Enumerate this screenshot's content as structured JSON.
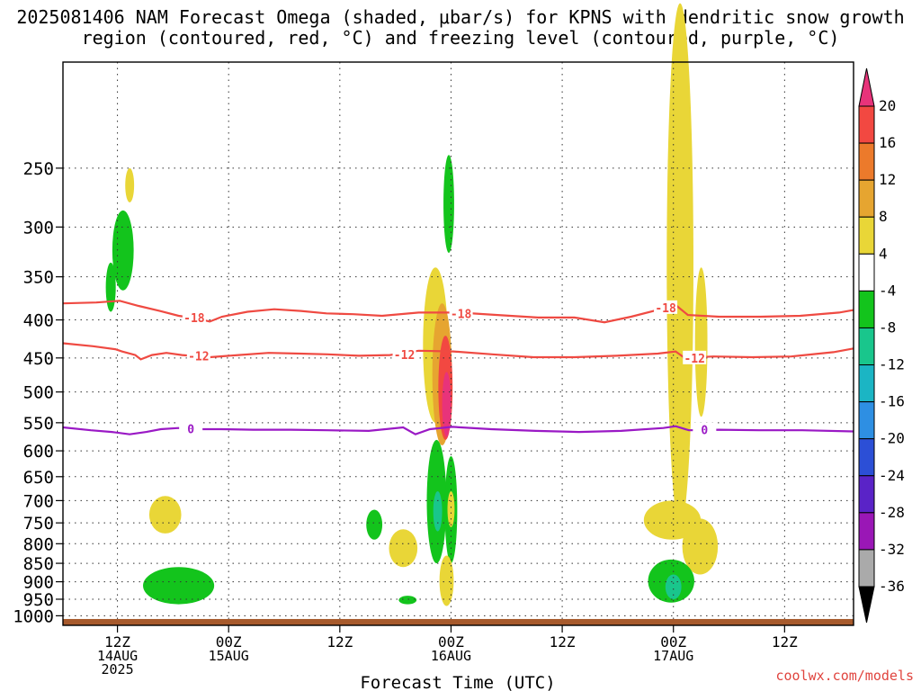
{
  "title": "2025081406 NAM Forecast Omega (shaded, μbar/s) for KPNS with dendritic snow growth region (contoured, red, °C) and freezing level (contoured, purple, °C)",
  "footer": "coolwx.com/models",
  "chart_data": {
    "type": "heatmap",
    "title": "2025081406 NAM Forecast Omega (shaded, μbar/s) for KPNS with dendritic snow growth region (contoured, red, °C) and freezing level (contoured, purple, °C)",
    "xlabel": "Forecast Time (UTC)",
    "ylabel": "",
    "x_range_hours": [
      -4,
      66
    ],
    "y_range_hPa": [
      1030,
      180
    ],
    "y_ticks": [
      250,
      300,
      350,
      400,
      450,
      500,
      550,
      600,
      650,
      700,
      750,
      800,
      850,
      900,
      950,
      1000
    ],
    "x_ticks": [
      {
        "hour": 0,
        "lines": [
          "12Z",
          "14AUG",
          "2025"
        ]
      },
      {
        "hour": 10,
        "lines": [
          "00Z",
          "15AUG"
        ]
      },
      {
        "hour": 20,
        "lines": [
          "12Z"
        ]
      },
      {
        "hour": 30,
        "lines": [
          "00Z",
          "16AUG"
        ]
      },
      {
        "hour": 40,
        "lines": [
          "12Z"
        ]
      },
      {
        "hour": 50,
        "lines": [
          "00Z",
          "17AUG"
        ]
      },
      {
        "hour": 60,
        "lines": [
          "12Z"
        ]
      }
    ],
    "grid": true,
    "colorbar": {
      "labels": [
        "20",
        "16",
        "12",
        "8",
        "4",
        "-4",
        "-8",
        "-12",
        "-16",
        "-20",
        "-24",
        "-28",
        "-32",
        "-36"
      ],
      "colors": [
        "#e8337a",
        "#f24841",
        "#ec7a2b",
        "#e6a530",
        "#e9d637",
        "#ffffff",
        "#13c41c",
        "#19c68c",
        "#1bb5c4",
        "#2e8fe3",
        "#2c4fd6",
        "#5a23c7",
        "#9a17b6",
        "#aaaaaa",
        "#000000"
      ],
      "min_arrow": "black",
      "max_arrow": "magenta"
    },
    "contours": [
      {
        "label": "-18",
        "color": "#ef4a42",
        "points": [
          [
            -4.9,
            380
          ],
          [
            -1.9,
            379
          ],
          [
            0.2,
            377
          ],
          [
            1.9,
            383
          ],
          [
            3.8,
            389
          ],
          [
            5.5,
            395
          ],
          [
            7.1,
            398
          ],
          [
            8.3,
            402
          ],
          [
            9.4,
            396
          ],
          [
            11.7,
            390
          ],
          [
            14.1,
            387
          ],
          [
            16.5,
            389
          ],
          [
            18.8,
            392
          ],
          [
            21.2,
            393
          ],
          [
            23.8,
            395
          ],
          [
            27.1,
            391
          ],
          [
            30.7,
            391
          ],
          [
            34.2,
            394
          ],
          [
            37.8,
            397
          ],
          [
            41.1,
            397
          ],
          [
            43.8,
            403
          ],
          [
            46.2,
            396
          ],
          [
            49.1,
            386
          ],
          [
            50.2,
            382
          ],
          [
            51.3,
            394
          ],
          [
            54.1,
            396
          ],
          [
            57.8,
            396
          ],
          [
            61.4,
            395
          ],
          [
            64.9,
            391
          ],
          [
            66.2,
            388
          ]
        ]
      },
      {
        "label": "-18",
        "color": "#ef4a42",
        "pts_labels": [
          [
            6.9,
            397
          ],
          [
            30.9,
            392
          ],
          [
            49.3,
            385
          ]
        ]
      },
      {
        "label": "-12",
        "color": "#ef4a42",
        "points": [
          [
            -4.9,
            430
          ],
          [
            -2.2,
            434
          ],
          [
            -0.2,
            438
          ],
          [
            0.4,
            441
          ],
          [
            1.6,
            446
          ],
          [
            2.1,
            452
          ],
          [
            3.1,
            446
          ],
          [
            4.4,
            443
          ],
          [
            5.8,
            446
          ],
          [
            8.3,
            449
          ],
          [
            10.9,
            446
          ],
          [
            13.6,
            443
          ],
          [
            16.4,
            444
          ],
          [
            18.9,
            445
          ],
          [
            21.7,
            447
          ],
          [
            24.5,
            446
          ],
          [
            27.1,
            440
          ],
          [
            30.2,
            441
          ],
          [
            33.7,
            445
          ],
          [
            37.4,
            449
          ],
          [
            41.1,
            449
          ],
          [
            44.9,
            447
          ],
          [
            48.6,
            444
          ],
          [
            50.2,
            441
          ],
          [
            51.0,
            450
          ],
          [
            53.6,
            448
          ],
          [
            57.1,
            449
          ],
          [
            60.6,
            448
          ],
          [
            64.4,
            442
          ],
          [
            66.2,
            437
          ]
        ]
      },
      {
        "label": "-12",
        "color": "#ef4a42",
        "pts_labels": [
          [
            7.3,
            447
          ],
          [
            25.8,
            445
          ],
          [
            51.9,
            450
          ]
        ]
      },
      {
        "label": "0",
        "color": "#9a19c5",
        "points": [
          [
            -4.9,
            558
          ],
          [
            -2.4,
            563
          ],
          [
            -0.5,
            566
          ],
          [
            1.1,
            570
          ],
          [
            2.6,
            566
          ],
          [
            3.9,
            561
          ],
          [
            5.5,
            559
          ],
          [
            7.3,
            561
          ],
          [
            9.3,
            561
          ],
          [
            12.2,
            562
          ],
          [
            15.6,
            562
          ],
          [
            18.9,
            563
          ],
          [
            22.6,
            564
          ],
          [
            25.7,
            558
          ],
          [
            26.8,
            570
          ],
          [
            28.1,
            561
          ],
          [
            30.1,
            557
          ],
          [
            33.6,
            561
          ],
          [
            37.6,
            564
          ],
          [
            41.5,
            566
          ],
          [
            45.3,
            564
          ],
          [
            49.1,
            559
          ],
          [
            50.2,
            556
          ],
          [
            51.4,
            563
          ],
          [
            54.1,
            562
          ],
          [
            57.7,
            563
          ],
          [
            61.6,
            563
          ],
          [
            66.2,
            565
          ]
        ]
      },
      {
        "label": "0",
        "color": "#9a19c5",
        "pts_labels": [
          [
            6.6,
            560
          ],
          [
            52.8,
            562
          ]
        ]
      }
    ],
    "omega_regions": [
      {
        "value": "-8",
        "color": "#13c41c",
        "hour": 0.5,
        "p_top": 285,
        "p_bottom": 365,
        "w": 0.6
      },
      {
        "value": "-8",
        "color": "#13c41c",
        "hour": -0.6,
        "p_top": 335,
        "p_bottom": 390,
        "w": 0.28
      },
      {
        "value": "4",
        "color": "#e9d637",
        "hour": 1.1,
        "p_top": 250,
        "p_bottom": 278,
        "w": 0.25
      },
      {
        "value": "4",
        "color": "#e9d637",
        "hour": 4.3,
        "p_top": 690,
        "p_bottom": 775,
        "w": 0.9
      },
      {
        "value": "-8",
        "color": "#13c41c",
        "hour": 5.5,
        "p_top": 860,
        "p_bottom": 965,
        "w": 2.0
      },
      {
        "value": "-8",
        "color": "#13c41c",
        "hour": 23.1,
        "p_top": 720,
        "p_bottom": 790,
        "w": 0.45
      },
      {
        "value": "4",
        "color": "#e9d637",
        "hour": 25.7,
        "p_top": 765,
        "p_bottom": 860,
        "w": 0.8
      },
      {
        "value": "-8",
        "color": "#13c41c",
        "hour": 26.1,
        "p_top": 940,
        "p_bottom": 965,
        "w": 0.5
      },
      {
        "value": "-8",
        "color": "#13c41c",
        "hour": 29.8,
        "p_top": 240,
        "p_bottom": 325,
        "w": 0.3
      },
      {
        "value": "4",
        "color": "#e9d637",
        "hour": 28.6,
        "p_top": 340,
        "p_bottom": 550,
        "w": 0.7
      },
      {
        "value": "8",
        "color": "#e6a530",
        "hour": 29.2,
        "p_top": 380,
        "p_bottom": 590,
        "w": 0.55
      },
      {
        "value": "16",
        "color": "#f24841",
        "hour": 29.5,
        "p_top": 420,
        "p_bottom": 580,
        "w": 0.4
      },
      {
        "value": "20",
        "color": "#e8337a",
        "hour": 29.6,
        "p_top": 470,
        "p_bottom": 575,
        "w": 0.25
      },
      {
        "value": "-8",
        "color": "#13c41c",
        "hour": 28.7,
        "p_top": 580,
        "p_bottom": 850,
        "w": 0.55
      },
      {
        "value": "-12",
        "color": "#19c68c",
        "hour": 28.8,
        "p_top": 680,
        "p_bottom": 770,
        "w": 0.25
      },
      {
        "value": "-8",
        "color": "#13c41c",
        "hour": 30.0,
        "p_top": 610,
        "p_bottom": 850,
        "w": 0.35
      },
      {
        "value": "4",
        "color": "#e9d637",
        "hour": 29.6,
        "p_top": 830,
        "p_bottom": 970,
        "w": 0.4
      },
      {
        "value": "4",
        "color": "#e9d637",
        "hour": 30.0,
        "p_top": 680,
        "p_bottom": 760,
        "w": 0.2
      },
      {
        "value": "4",
        "color": "#e9d637",
        "hour": 50.6,
        "p_top": 150,
        "p_bottom": 760,
        "w": 0.75
      },
      {
        "value": "4",
        "color": "#e9d637",
        "hour": 49.9,
        "p_top": 700,
        "p_bottom": 790,
        "w": 1.6
      },
      {
        "value": "4",
        "color": "#e9d637",
        "hour": 52.4,
        "p_top": 740,
        "p_bottom": 880,
        "w": 1.0
      },
      {
        "value": "4",
        "color": "#e9d637",
        "hour": 52.5,
        "p_top": 340,
        "p_bottom": 540,
        "w": 0.35
      },
      {
        "value": "-8",
        "color": "#13c41c",
        "hour": 49.8,
        "p_top": 840,
        "p_bottom": 960,
        "w": 1.3
      },
      {
        "value": "-12",
        "color": "#19c68c",
        "hour": 50.0,
        "p_top": 880,
        "p_bottom": 950,
        "w": 0.45
      }
    ],
    "ground": {
      "color": "#a75a2c",
      "p_top": 1010,
      "p_bottom": 1030
    }
  }
}
